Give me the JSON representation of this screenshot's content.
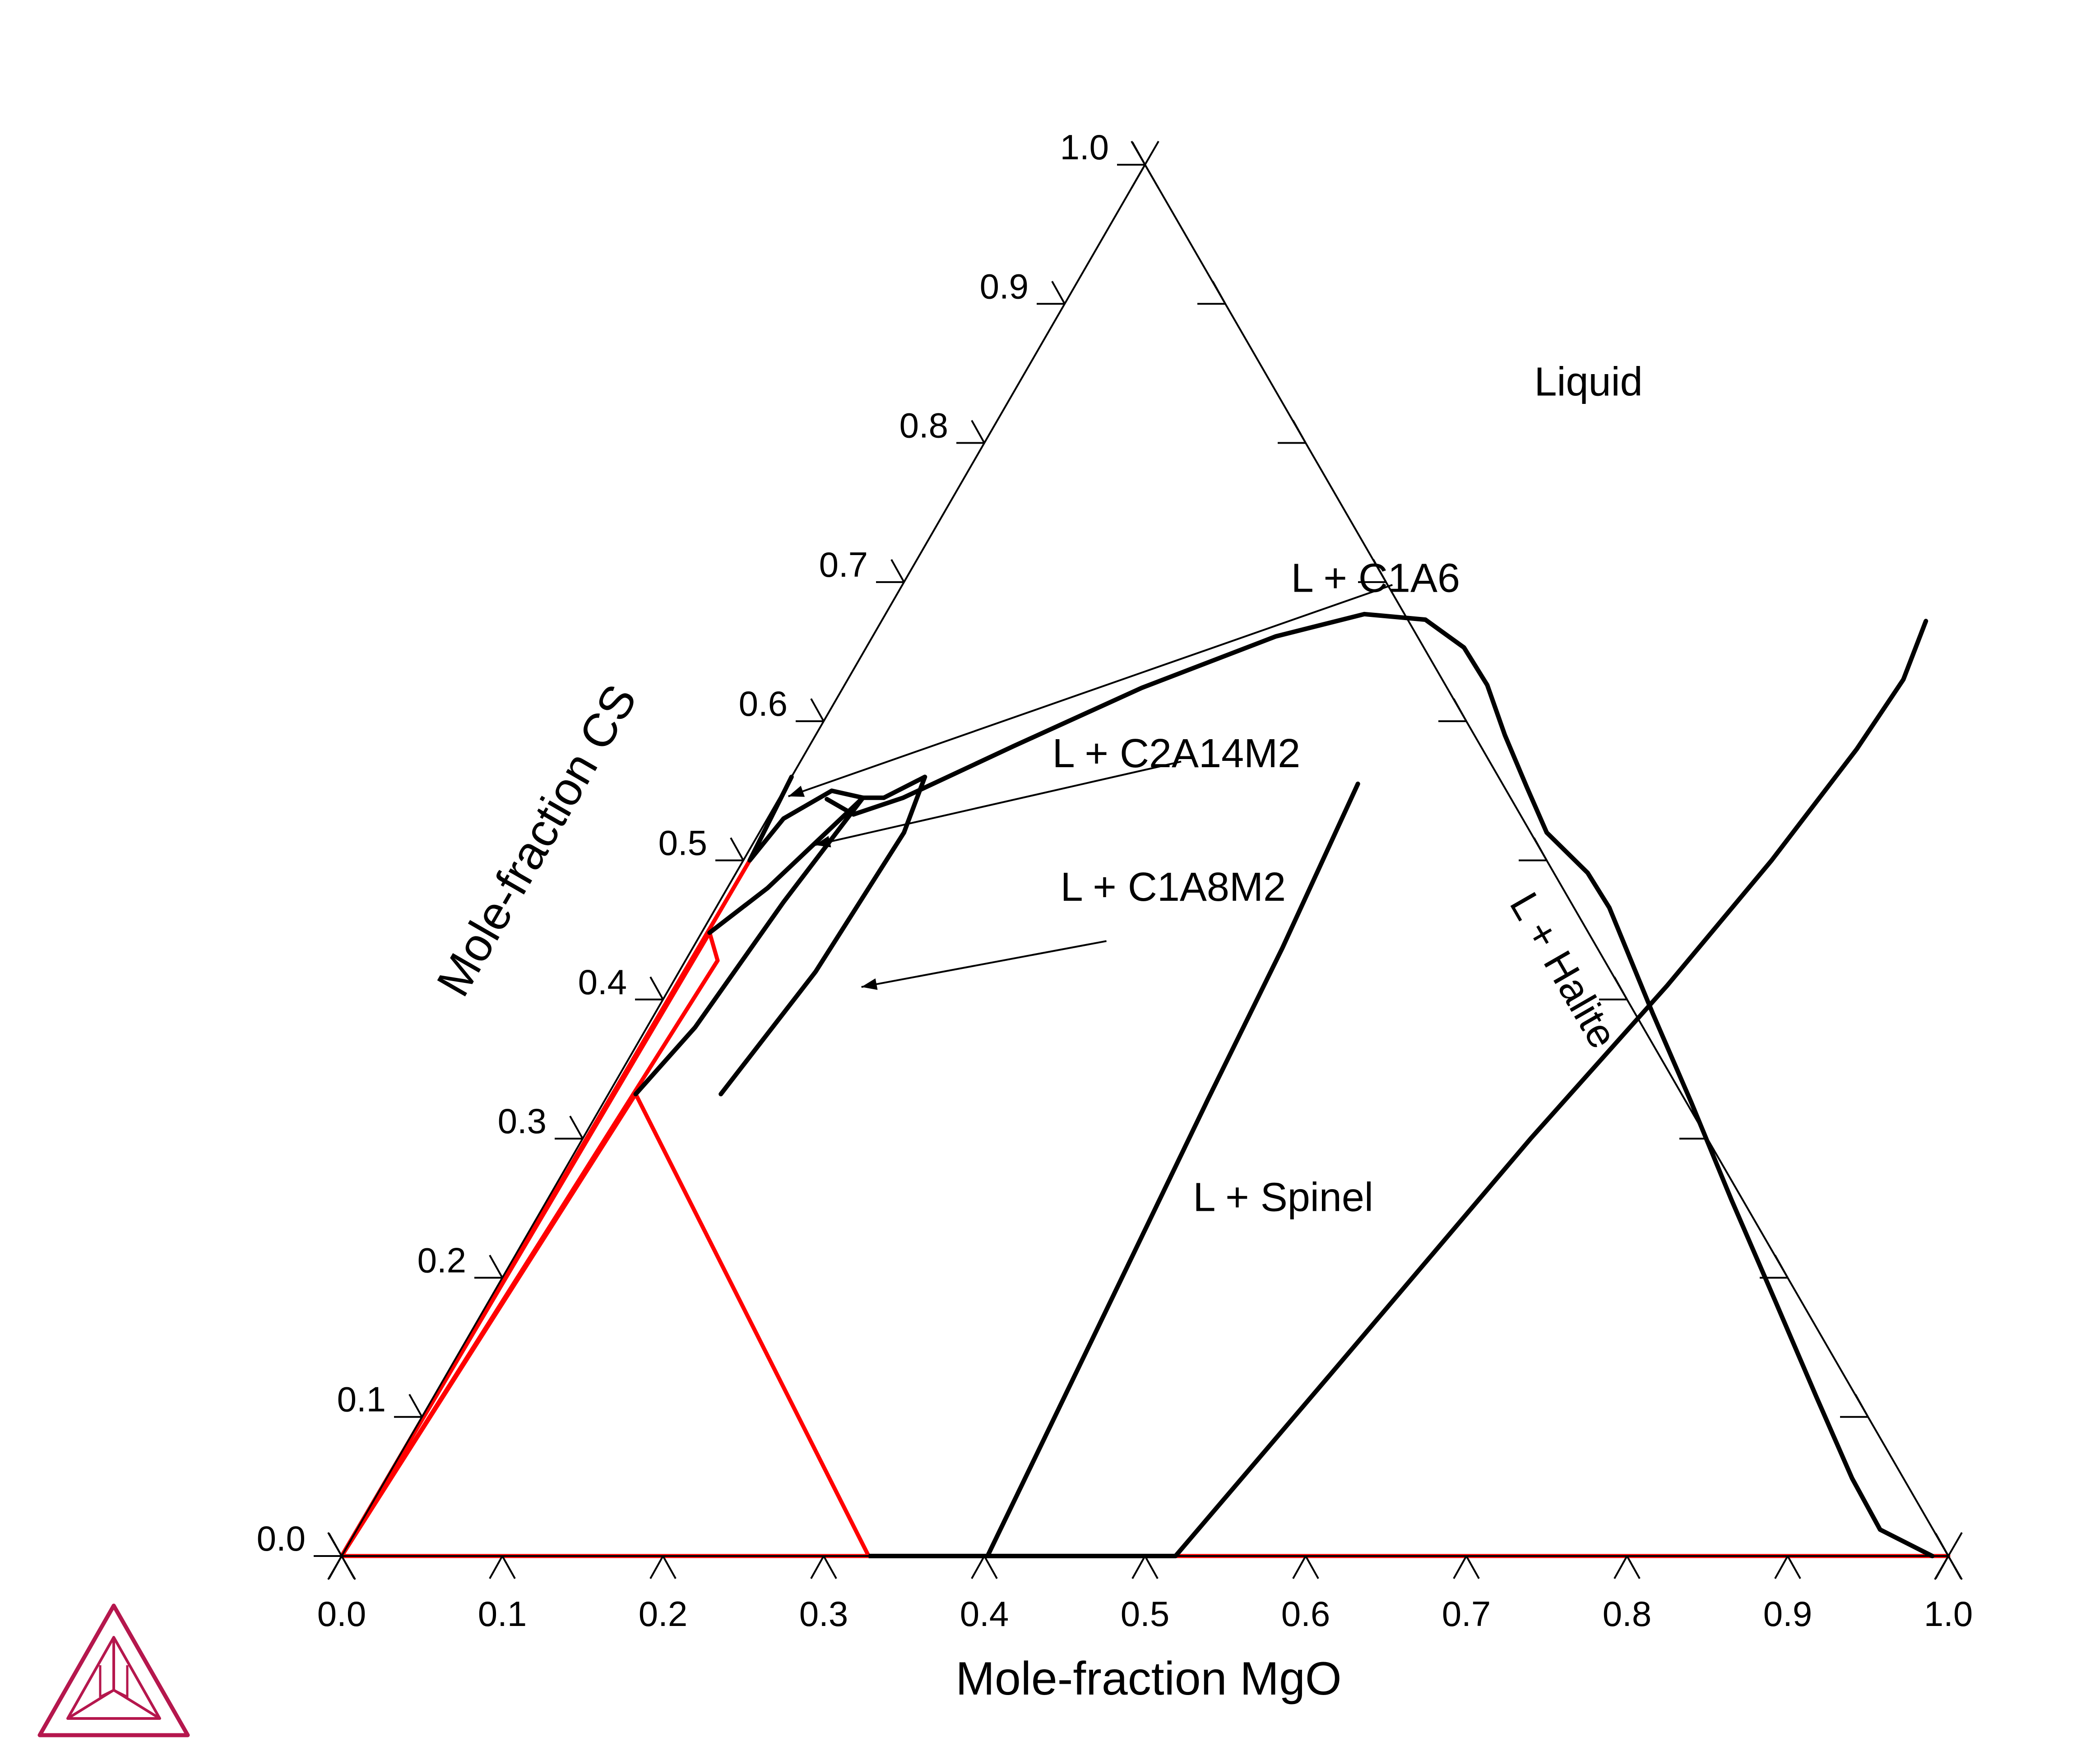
{
  "chart_data": {
    "type": "ternary",
    "xlabel": "Mole-fraction MgO",
    "ylabel": "Mole-fraction CS",
    "xlim": [
      0,
      1
    ],
    "ylim": [
      0,
      1
    ],
    "bottom_ticks": [
      "0.0",
      "0.1",
      "0.2",
      "0.3",
      "0.4",
      "0.5",
      "0.6",
      "0.7",
      "0.8",
      "0.9",
      "1.0"
    ],
    "left_ticks": [
      "0.0",
      "0.1",
      "0.2",
      "0.3",
      "0.4",
      "0.5",
      "0.6",
      "0.7",
      "0.8",
      "0.9",
      "1.0"
    ],
    "region_labels": [
      {
        "text": "Liquid",
        "x": 0.359,
        "y": 0.834
      },
      {
        "text": "L + C1A6",
        "x": 0.297,
        "y": 0.693
      },
      {
        "text": "L + C2A14M2",
        "x": 0.236,
        "y": 0.567
      },
      {
        "text": "L + C1A8M2",
        "x": 0.282,
        "y": 0.471
      },
      {
        "text": "L + Spinel",
        "x": 0.462,
        "y": 0.248
      },
      {
        "text": "L + Halite",
        "x": 0.545,
        "y": 0.416
      }
    ],
    "annotation_arrows": [
      {
        "label": "L + C1A6",
        "from": [
          0.305,
          0.698
        ],
        "to": [
          0.005,
          0.546
        ]
      },
      {
        "label": "L + C2A14M2",
        "from": [
          0.237,
          0.571
        ],
        "to": [
          0.039,
          0.511
        ]
      },
      {
        "label": "L + C1A8M2",
        "from": [
          0.255,
          0.442
        ],
        "to": [
          0.119,
          0.409
        ]
      }
    ],
    "colors": {
      "phase_boundary": "#000000",
      "tie_line": "#ff0000",
      "axis": "#000000",
      "logo": "#b5174d"
    },
    "boundaries": [
      {
        "name": "liquidus",
        "color": "#000000",
        "points": [
          [
            0.03,
            0.544
          ],
          [
            0.052,
            0.533
          ],
          [
            0.077,
            0.545
          ],
          [
            0.127,
            0.582
          ],
          [
            0.186,
            0.624
          ],
          [
            0.251,
            0.661
          ],
          [
            0.298,
            0.677
          ],
          [
            0.338,
            0.673
          ],
          [
            0.372,
            0.653
          ],
          [
            0.4,
            0.626
          ],
          [
            0.429,
            0.59
          ],
          [
            0.461,
            0.553
          ],
          [
            0.49,
            0.52
          ],
          [
            0.53,
            0.491
          ],
          [
            0.556,
            0.466
          ],
          [
            0.621,
            0.39
          ],
          [
            0.677,
            0.326
          ],
          [
            0.737,
            0.256
          ],
          [
            0.8,
            0.184
          ],
          [
            0.861,
            0.114
          ],
          [
            0.912,
            0.056
          ],
          [
            0.948,
            0.019
          ],
          [
            0.99,
            0.0
          ]
        ]
      },
      {
        "name": "spinel-lower",
        "color": "#000000",
        "points": [
          [
            0.402,
            0.0
          ],
          [
            0.389,
            0.159
          ],
          [
            0.375,
            0.329
          ],
          [
            0.367,
            0.437
          ],
          [
            0.355,
            0.555
          ]
        ]
      },
      {
        "name": "spinel-halite",
        "color": "#000000",
        "points": [
          [
            0.519,
            0.0
          ],
          [
            0.55,
            0.13
          ],
          [
            0.59,
            0.3
          ],
          [
            0.62,
            0.41
          ],
          [
            0.64,
            0.5
          ],
          [
            0.653,
            0.58
          ],
          [
            0.657,
            0.63
          ],
          [
            0.65,
            0.672
          ]
        ]
      },
      {
        "name": "left-boundary-upper",
        "color": "#000000",
        "points": [
          [
            0.0,
            0.56
          ],
          [
            0.004,
            0.5
          ],
          [
            0.01,
            0.53
          ],
          [
            0.03,
            0.55
          ],
          [
            0.052,
            0.545
          ],
          [
            0.065,
            0.545
          ]
        ]
      },
      {
        "name": "c2-left",
        "color": "#000000",
        "points": [
          [
            0.052,
            0.545
          ],
          [
            0.025,
            0.48
          ],
          [
            0.005,
            0.448
          ]
        ]
      },
      {
        "name": "c1a8m2-left",
        "color": "#000000",
        "points": [
          [
            0.052,
            0.545
          ],
          [
            0.04,
            0.47
          ],
          [
            0.03,
            0.38
          ],
          [
            0.017,
            0.332
          ]
        ]
      },
      {
        "name": "c1a8m2-right",
        "color": "#000000",
        "points": [
          [
            0.065,
            0.545
          ],
          [
            0.083,
            0.56
          ],
          [
            0.09,
            0.52
          ],
          [
            0.085,
            0.42
          ],
          [
            0.07,
            0.332
          ]
        ]
      }
    ],
    "tie_lines": [
      {
        "color": "#ff0000",
        "from": [
          0.0,
          0.0
        ],
        "to": [
          0.004,
          0.5
        ]
      },
      {
        "color": "#ff0000",
        "from": [
          0.0,
          0.0
        ],
        "to": [
          0.005,
          0.448
        ]
      },
      {
        "color": "#ff0000",
        "from": [
          0.0,
          0.0
        ],
        "to": [
          0.02,
          0.428
        ]
      },
      {
        "color": "#ff0000",
        "from": [
          0.0,
          0.0
        ],
        "to": [
          0.017,
          0.332
        ]
      },
      {
        "color": "#ff0000",
        "from": [
          0.017,
          0.332
        ],
        "to": [
          0.328,
          0.0
        ]
      },
      {
        "color": "#ff0000",
        "from": [
          0.005,
          0.448
        ],
        "to": [
          0.02,
          0.428
        ]
      },
      {
        "color": "#ff0000",
        "from": [
          0.0,
          0.0
        ],
        "to": [
          0.328,
          0.0
        ]
      },
      {
        "color": "#ff0000",
        "from": [
          0.519,
          0.0
        ],
        "to": [
          1.0,
          0.0
        ]
      }
    ],
    "spine_segments": [
      {
        "color": "#000000",
        "from": [
          0.328,
          0.0
        ],
        "to": [
          0.519,
          0.0
        ]
      }
    ]
  }
}
